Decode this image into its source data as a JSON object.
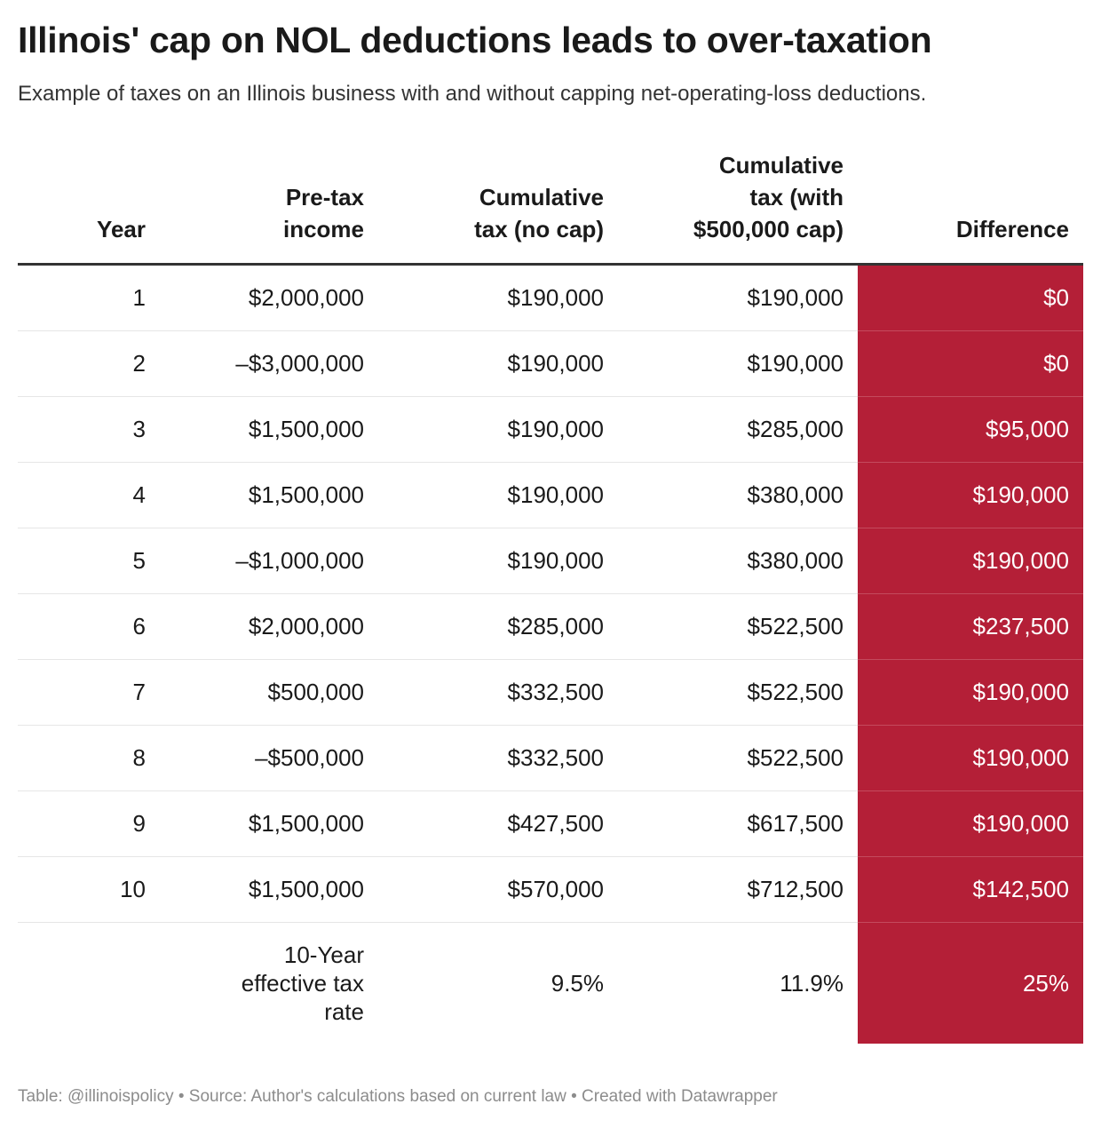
{
  "title": "Illinois' cap on NOL deductions leads to over-taxation",
  "subtitle": "Example of taxes on an Illinois business with and without capping net-operating-loss deductions.",
  "footer": "Table: @illinoispolicy • Source: Author's calculations based on current law • Created with Datawrapper",
  "colors": {
    "highlight": "#b41f37",
    "text": "#1a1a1a"
  },
  "chart_data": {
    "type": "table",
    "columns": [
      "Year",
      "Pre-tax\nincome",
      "Cumulative\ntax (no cap)",
      "Cumulative\ntax (with\n$500,000 cap)",
      "Difference"
    ],
    "rows": [
      [
        "1",
        "$2,000,000",
        "$190,000",
        "$190,000",
        "$0"
      ],
      [
        "2",
        "–$3,000,000",
        "$190,000",
        "$190,000",
        "$0"
      ],
      [
        "3",
        "$1,500,000",
        "$190,000",
        "$285,000",
        "$95,000"
      ],
      [
        "4",
        "$1,500,000",
        "$190,000",
        "$380,000",
        "$190,000"
      ],
      [
        "5",
        "–$1,000,000",
        "$190,000",
        "$380,000",
        "$190,000"
      ],
      [
        "6",
        "$2,000,000",
        "$285,000",
        "$522,500",
        "$237,500"
      ],
      [
        "7",
        "$500,000",
        "$332,500",
        "$522,500",
        "$190,000"
      ],
      [
        "8",
        "–$500,000",
        "$332,500",
        "$522,500",
        "$190,000"
      ],
      [
        "9",
        "$1,500,000",
        "$427,500",
        "$617,500",
        "$190,000"
      ],
      [
        "10",
        "$1,500,000",
        "$570,000",
        "$712,500",
        "$142,500"
      ]
    ],
    "summary_row": [
      "",
      "10-Year\neffective tax\nrate",
      "9.5%",
      "11.9%",
      "25%"
    ]
  }
}
